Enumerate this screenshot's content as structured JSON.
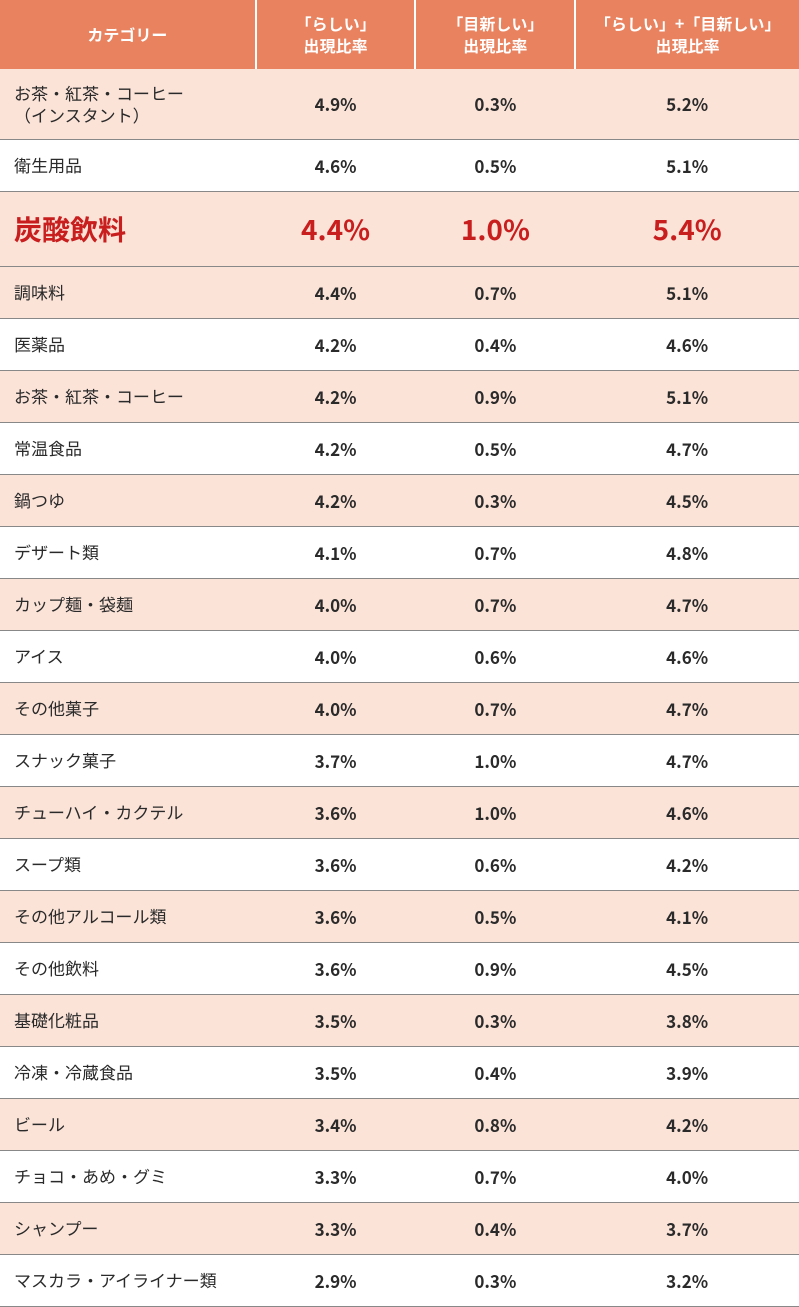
{
  "table": {
    "type": "table",
    "header_bg": "#e8825f",
    "header_fg": "#ffffff",
    "row_bg_peach": "#fbe3d8",
    "row_bg_white": "#ffffff",
    "highlight_color": "#c91e1e",
    "border_color": "#888888",
    "columns": [
      {
        "label": "カテゴリー"
      },
      {
        "label": "「らしい」\n出現比率"
      },
      {
        "label": "「目新しい」\n出現比率"
      },
      {
        "label": "「らしい」+「目新しい」\n出現比率"
      }
    ],
    "rows": [
      {
        "category": "お茶・紅茶・コーヒー\n（インスタント）",
        "v1": "4.9%",
        "v2": "0.3%",
        "v3": "5.2%",
        "bg": "peach",
        "highlight": false
      },
      {
        "category": "衛生用品",
        "v1": "4.6%",
        "v2": "0.5%",
        "v3": "5.1%",
        "bg": "white",
        "highlight": false
      },
      {
        "category": "炭酸飲料",
        "v1": "4.4%",
        "v2": "1.0%",
        "v3": "5.4%",
        "bg": "peach",
        "highlight": true
      },
      {
        "category": "調味料",
        "v1": "4.4%",
        "v2": "0.7%",
        "v3": "5.1%",
        "bg": "peach",
        "highlight": false
      },
      {
        "category": "医薬品",
        "v1": "4.2%",
        "v2": "0.4%",
        "v3": "4.6%",
        "bg": "white",
        "highlight": false
      },
      {
        "category": "お茶・紅茶・コーヒー",
        "v1": "4.2%",
        "v2": "0.9%",
        "v3": "5.1%",
        "bg": "peach",
        "highlight": false
      },
      {
        "category": "常温食品",
        "v1": "4.2%",
        "v2": "0.5%",
        "v3": "4.7%",
        "bg": "white",
        "highlight": false
      },
      {
        "category": "鍋つゆ",
        "v1": "4.2%",
        "v2": "0.3%",
        "v3": "4.5%",
        "bg": "peach",
        "highlight": false
      },
      {
        "category": "デザート類",
        "v1": "4.1%",
        "v2": "0.7%",
        "v3": "4.8%",
        "bg": "white",
        "highlight": false
      },
      {
        "category": "カップ麺・袋麺",
        "v1": "4.0%",
        "v2": "0.7%",
        "v3": "4.7%",
        "bg": "peach",
        "highlight": false
      },
      {
        "category": "アイス",
        "v1": "4.0%",
        "v2": "0.6%",
        "v3": "4.6%",
        "bg": "white",
        "highlight": false
      },
      {
        "category": "その他菓子",
        "v1": "4.0%",
        "v2": "0.7%",
        "v3": "4.7%",
        "bg": "peach",
        "highlight": false
      },
      {
        "category": "スナック菓子",
        "v1": "3.7%",
        "v2": "1.0%",
        "v3": "4.7%",
        "bg": "white",
        "highlight": false
      },
      {
        "category": "チューハイ・カクテル",
        "v1": "3.6%",
        "v2": "1.0%",
        "v3": "4.6%",
        "bg": "peach",
        "highlight": false
      },
      {
        "category": "スープ類",
        "v1": "3.6%",
        "v2": "0.6%",
        "v3": "4.2%",
        "bg": "white",
        "highlight": false
      },
      {
        "category": "その他アルコール類",
        "v1": "3.6%",
        "v2": "0.5%",
        "v3": "4.1%",
        "bg": "peach",
        "highlight": false
      },
      {
        "category": "その他飲料",
        "v1": "3.6%",
        "v2": "0.9%",
        "v3": "4.5%",
        "bg": "white",
        "highlight": false
      },
      {
        "category": "基礎化粧品",
        "v1": "3.5%",
        "v2": "0.3%",
        "v3": "3.8%",
        "bg": "peach",
        "highlight": false
      },
      {
        "category": "冷凍・冷蔵食品",
        "v1": "3.5%",
        "v2": "0.4%",
        "v3": "3.9%",
        "bg": "white",
        "highlight": false
      },
      {
        "category": "ビール",
        "v1": "3.4%",
        "v2": "0.8%",
        "v3": "4.2%",
        "bg": "peach",
        "highlight": false
      },
      {
        "category": "チョコ・あめ・グミ",
        "v1": "3.3%",
        "v2": "0.7%",
        "v3": "4.0%",
        "bg": "white",
        "highlight": false
      },
      {
        "category": "シャンプー",
        "v1": "3.3%",
        "v2": "0.4%",
        "v3": "3.7%",
        "bg": "peach",
        "highlight": false
      },
      {
        "category": "マスカラ・アイライナー類",
        "v1": "2.9%",
        "v2": "0.3%",
        "v3": "3.2%",
        "bg": "white",
        "highlight": false
      }
    ]
  }
}
